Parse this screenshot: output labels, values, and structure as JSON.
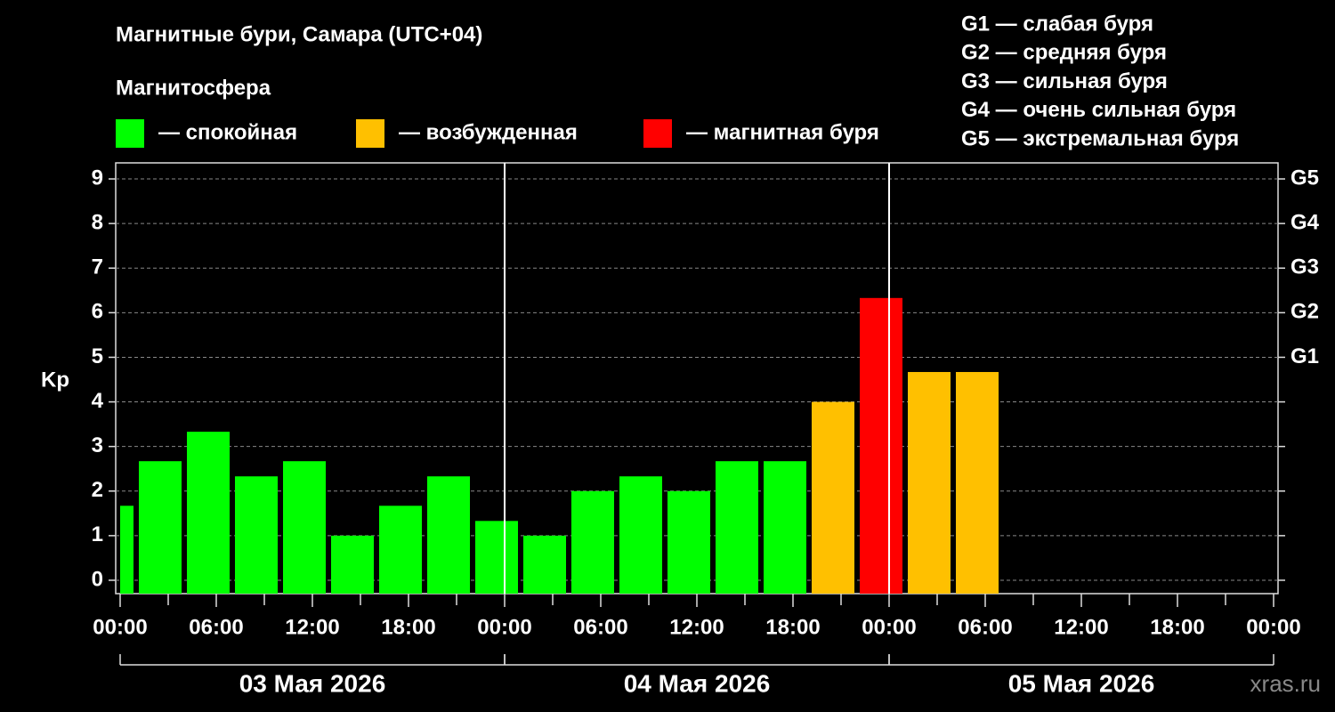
{
  "chart_data": {
    "type": "bar",
    "title": "Магнитные бури, Самара (UTC+04)",
    "y_label": "Kp",
    "x": [
      -0.5,
      2.5,
      5.5,
      8.5,
      11.5,
      14.5,
      17.5,
      20.5,
      23.5,
      26.5,
      29.5,
      32.5,
      35.5,
      38.5,
      41.5,
      44.5,
      47.5,
      50.5,
      53.5
    ],
    "series": [
      {
        "values": [
          1.67,
          2.67,
          3.33,
          2.33,
          2.67,
          1.0,
          1.67,
          2.33,
          1.33,
          1.0,
          2.0,
          2.33,
          2.0,
          2.67,
          2.67,
          4.0,
          6.33,
          4.67,
          4.67
        ],
        "colors": [
          "#00ff00",
          "#00ff00",
          "#00ff00",
          "#00ff00",
          "#00ff00",
          "#00ff00",
          "#00ff00",
          "#00ff00",
          "#00ff00",
          "#00ff00",
          "#00ff00",
          "#00ff00",
          "#00ff00",
          "#00ff00",
          "#00ff00",
          "#ffc000",
          "#ff0000",
          "#ffc000",
          "#ffc000"
        ]
      }
    ],
    "bar_width": 2.667,
    "xlim": [
      0,
      72
    ],
    "xticks": [
      {
        "value": 0,
        "label": "00:00"
      },
      {
        "value": 6,
        "label": "06:00"
      },
      {
        "value": 12,
        "label": "12:00"
      },
      {
        "value": 18,
        "label": "18:00"
      },
      {
        "value": 24,
        "label": "00:00"
      },
      {
        "value": 30,
        "label": "06:00"
      },
      {
        "value": 36,
        "label": "12:00"
      },
      {
        "value": 42,
        "label": "18:00"
      },
      {
        "value": 48,
        "label": "00:00"
      },
      {
        "value": 54,
        "label": "06:00"
      },
      {
        "value": 60,
        "label": "12:00"
      },
      {
        "value": 66,
        "label": "18:00"
      },
      {
        "value": 72,
        "label": "00:00"
      }
    ],
    "xminorticks": [
      3,
      9,
      15,
      21,
      27,
      33,
      39,
      45,
      51,
      57,
      63,
      69
    ],
    "days": [
      {
        "label": "03 Мая 2026",
        "range": [
          0,
          24
        ]
      },
      {
        "label": "04 Мая 2026",
        "range": [
          24,
          48
        ]
      },
      {
        "label": "05 Мая 2026",
        "range": [
          48,
          72
        ]
      }
    ],
    "ylim": [
      -0.3,
      9.36
    ],
    "yticks": [
      0,
      1,
      2,
      3,
      4,
      5,
      6,
      7,
      8,
      9
    ],
    "y2ticks": [
      {
        "value": 5,
        "label": "G1"
      },
      {
        "value": 6,
        "label": "G2"
      },
      {
        "value": 7,
        "label": "G3"
      },
      {
        "value": 8,
        "label": "G4"
      },
      {
        "value": 9,
        "label": "G5"
      }
    ],
    "grid": true,
    "legend": {
      "title": "Магнитосфера",
      "items": [
        {
          "color": "#00ff00",
          "label": "— спокойная"
        },
        {
          "color": "#ffc000",
          "label": "— возбужденная"
        },
        {
          "color": "#ff0000",
          "label": "— магнитная буря"
        }
      ]
    },
    "storm_scale": [
      "G1 — слабая буря",
      "G2 — средняя буря",
      "G3 — сильная буря",
      "G4 — очень сильная буря",
      "G5 — экстремальная буря"
    ],
    "watermark": "xras.ru"
  }
}
